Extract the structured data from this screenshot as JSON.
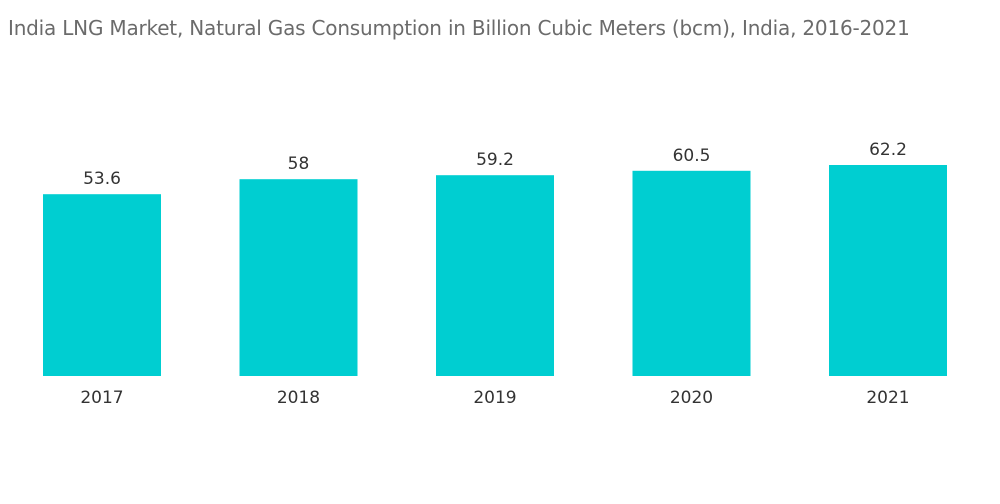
{
  "chart_data": {
    "type": "bar",
    "title": "India LNG Market, Natural Gas Consumption in Billion Cubic Meters (bcm), India, 2016-2021",
    "categories": [
      "2017",
      "2018",
      "2019",
      "2020",
      "2021"
    ],
    "values": [
      53.6,
      58,
      59.2,
      60.5,
      62.2
    ],
    "value_labels": [
      "53.6",
      "58",
      "59.2",
      "60.5",
      "62.2"
    ],
    "xlabel": "",
    "ylabel": "",
    "ylim": [
      0,
      62.2
    ],
    "grid": false,
    "legend": "none",
    "bar_color": "#00ced1"
  }
}
